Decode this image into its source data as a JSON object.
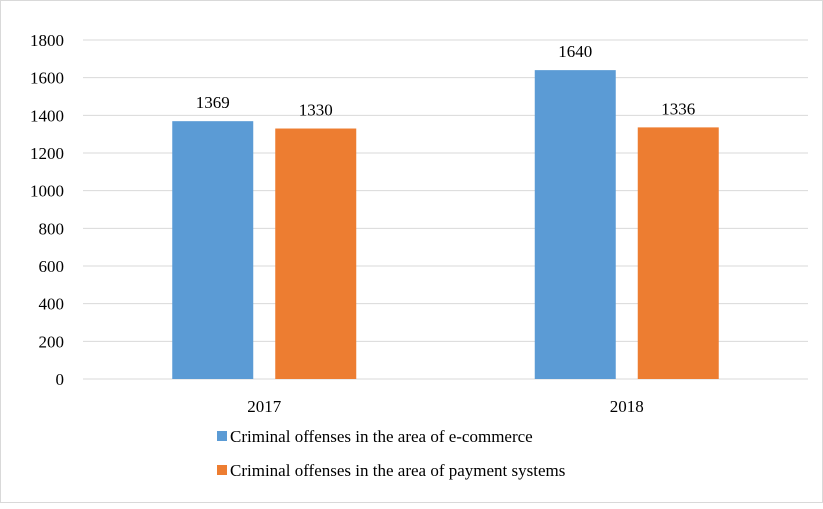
{
  "chart_data": {
    "type": "bar",
    "categories": [
      "2017",
      "2018"
    ],
    "series": [
      {
        "name": "Criminal offenses in the area of e-commerce",
        "values": [
          1369,
          1640
        ],
        "color": "#5b9bd5"
      },
      {
        "name": "Criminal offenses in the area of payment systems",
        "values": [
          1330,
          1336
        ],
        "color": "#ed7d31"
      }
    ],
    "ylim": [
      0,
      1800
    ],
    "yticks": [
      0,
      200,
      400,
      600,
      800,
      1000,
      1200,
      1400,
      1600,
      1800
    ],
    "grid": true,
    "legend_position": "bottom",
    "title": "",
    "xlabel": "",
    "ylabel": ""
  }
}
